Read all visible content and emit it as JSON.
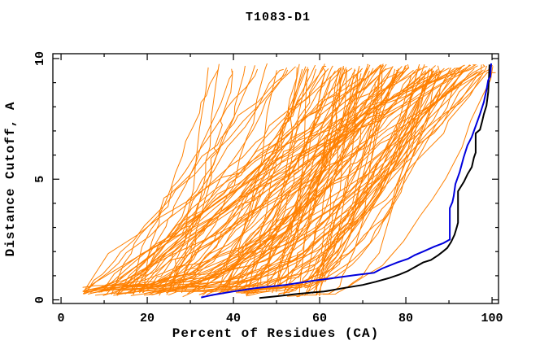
{
  "title": "T1083-D1",
  "axes": {
    "x": {
      "label": "Percent of Residues (CA)",
      "min": -1.9,
      "max": 101.5,
      "major_values": [
        0,
        20,
        40,
        60,
        80,
        100
      ],
      "major_labels": [
        "0",
        "20",
        "40",
        "60",
        "80",
        "100"
      ],
      "minor_values": [
        10,
        30,
        50,
        70,
        90
      ]
    },
    "y": {
      "label": "Distance Cutoff, A",
      "min": -0.15,
      "max": 10.2,
      "major_values": [
        0,
        5,
        10
      ],
      "major_labels": [
        "0",
        "5",
        "10"
      ],
      "minor_values": [
        1,
        2,
        3,
        4,
        6,
        7,
        8,
        9
      ]
    }
  },
  "colors": {
    "frame": "#000000",
    "ensemble": "#ff8000",
    "model_black": "#000000",
    "model_blue": "#0000dd",
    "background": "#ffffff"
  },
  "chart_data": {
    "type": "line",
    "title": "T1083-D1",
    "xlabel": "Percent of Residues (CA)",
    "ylabel": "Distance Cutoff, A",
    "xlim": [
      -1.9,
      101.5
    ],
    "ylim": [
      -0.15,
      10.2
    ],
    "grid": false,
    "legend": "none",
    "description": "CASP-style GDT plot: cumulative percent of CA residues under a distance cutoff. ~130 thin orange server-model curves form a fan with a dense band below 1 A; one black curve and one blue curve are highlighted reaching ~99-100% near 9.8 A.",
    "series": [
      {
        "name": "highlighted-model-black",
        "color": "#000000",
        "width": 2,
        "points": [
          [
            46,
            0.08
          ],
          [
            50,
            0.15
          ],
          [
            55,
            0.25
          ],
          [
            61,
            0.35
          ],
          [
            66,
            0.5
          ],
          [
            70,
            0.62
          ],
          [
            73,
            0.75
          ],
          [
            76,
            0.9
          ],
          [
            78.5,
            1.05
          ],
          [
            80.5,
            1.2
          ],
          [
            82,
            1.35
          ],
          [
            84,
            1.55
          ],
          [
            85.8,
            1.65
          ],
          [
            87.5,
            1.85
          ],
          [
            88.6,
            2.0
          ],
          [
            89.6,
            2.15
          ],
          [
            90.5,
            2.4
          ],
          [
            91.3,
            2.7
          ],
          [
            91.8,
            3.0
          ],
          [
            92.1,
            3.2
          ],
          [
            92.1,
            4.5
          ],
          [
            92.8,
            4.7
          ],
          [
            93.5,
            4.9
          ],
          [
            94.3,
            5.2
          ],
          [
            95.3,
            5.5
          ],
          [
            95.8,
            5.9
          ],
          [
            96.2,
            6.1
          ],
          [
            96.2,
            6.9
          ],
          [
            97.2,
            7.05
          ],
          [
            97.7,
            7.4
          ],
          [
            98.1,
            7.7
          ],
          [
            98.7,
            8.05
          ],
          [
            99.1,
            8.6
          ],
          [
            99.3,
            9.2
          ],
          [
            99.4,
            9.75
          ]
        ]
      },
      {
        "name": "highlighted-model-blue",
        "color": "#0000dd",
        "width": 2,
        "points": [
          [
            32.5,
            0.1
          ],
          [
            35,
            0.2
          ],
          [
            40,
            0.35
          ],
          [
            45,
            0.48
          ],
          [
            52,
            0.62
          ],
          [
            58,
            0.78
          ],
          [
            63,
            0.9
          ],
          [
            68,
            1.02
          ],
          [
            72.6,
            1.12
          ],
          [
            74.5,
            1.3
          ],
          [
            78,
            1.55
          ],
          [
            80.5,
            1.7
          ],
          [
            82,
            1.85
          ],
          [
            84,
            2.0
          ],
          [
            86.5,
            2.2
          ],
          [
            88.7,
            2.35
          ],
          [
            90.2,
            2.5
          ],
          [
            90.2,
            3.8
          ],
          [
            90.8,
            4.05
          ],
          [
            91.1,
            4.3
          ],
          [
            91.5,
            4.8
          ],
          [
            92.5,
            5.3
          ],
          [
            93.4,
            5.9
          ],
          [
            94.3,
            6.4
          ],
          [
            95.3,
            6.75
          ],
          [
            96.2,
            7.2
          ],
          [
            97.2,
            7.7
          ],
          [
            98.1,
            8.2
          ],
          [
            98.7,
            8.7
          ],
          [
            99.1,
            9.1
          ],
          [
            99.6,
            9.25
          ],
          [
            99.8,
            9.8
          ]
        ]
      }
    ],
    "ensemble": {
      "name": "server-models-orange",
      "color": "#ff8000",
      "width": 1,
      "count": 130,
      "seed": 42,
      "x_start_range": [
        5,
        61
      ],
      "x_top_range": [
        26,
        100.8
      ],
      "y_bottom_range": [
        0.22,
        0.6
      ],
      "y_top_range": [
        9.45,
        9.8
      ]
    }
  }
}
